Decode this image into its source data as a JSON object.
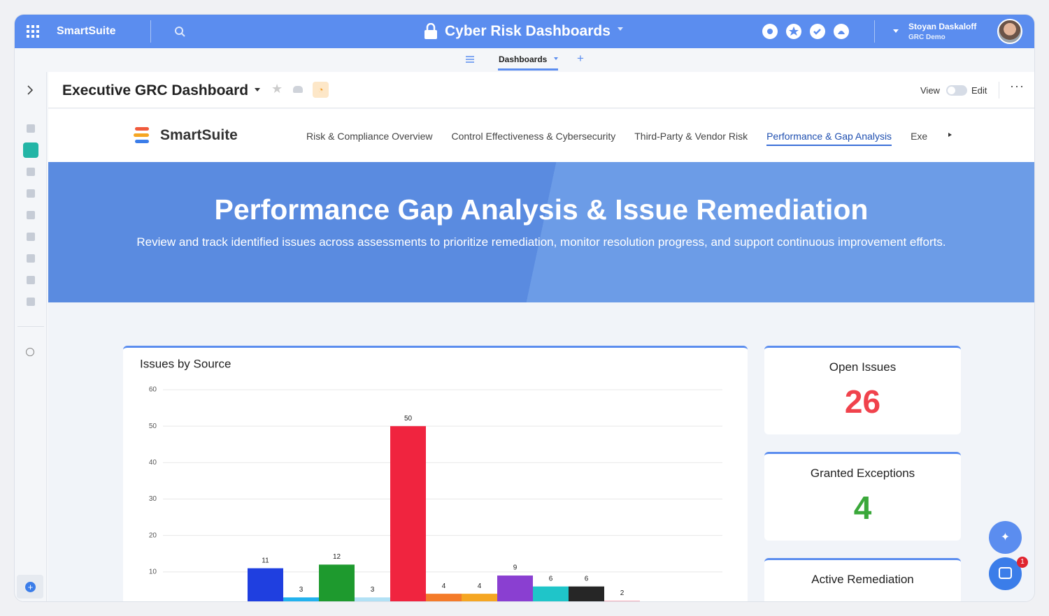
{
  "app": {
    "brand": "SmartSuite",
    "title": "Cyber Risk Dashboards",
    "user_name": "Stoyan Daskaloff",
    "user_org": "GRC Demo",
    "notifications": "1"
  },
  "subnav": {
    "tab": "Dashboards"
  },
  "dashboard": {
    "title": "Executive GRC Dashboard",
    "view": "View",
    "edit": "Edit"
  },
  "banner_nav": {
    "brand": "SmartSuite",
    "tabs": [
      "Risk & Compliance Overview",
      "Control Effectiveness & Cybersecurity",
      "Third-Party & Vendor Risk",
      "Performance & Gap Analysis",
      "Exe"
    ],
    "active": 3
  },
  "hero": {
    "title": "Performance Gap Analysis & Issue Remediation",
    "subtitle": "Review and track identified issues across assessments to prioritize remediation, monitor resolution progress, and support continuous improvement efforts."
  },
  "chart_data": {
    "type": "bar",
    "title": "Issues by Source",
    "values": [
      11,
      3,
      12,
      3,
      50,
      4,
      4,
      9,
      6,
      6,
      2
    ],
    "colors": [
      "#1f3fe0",
      "#22b2ee",
      "#1e9a2e",
      "#b2e1f5",
      "#f0243f",
      "#f47b2a",
      "#f5a623",
      "#8a3fd1",
      "#1fc5c9",
      "#262626",
      "#f04060"
    ],
    "ylim": [
      0,
      60
    ],
    "yticks": [
      10,
      20,
      30,
      40,
      50,
      60
    ],
    "grid": true
  },
  "kpis": [
    {
      "title": "Open Issues",
      "value": 26,
      "color": "#f0424c"
    },
    {
      "title": "Granted Exceptions",
      "value": 4,
      "color": "#3aa83a"
    },
    {
      "title": "Active Remediation"
    }
  ]
}
